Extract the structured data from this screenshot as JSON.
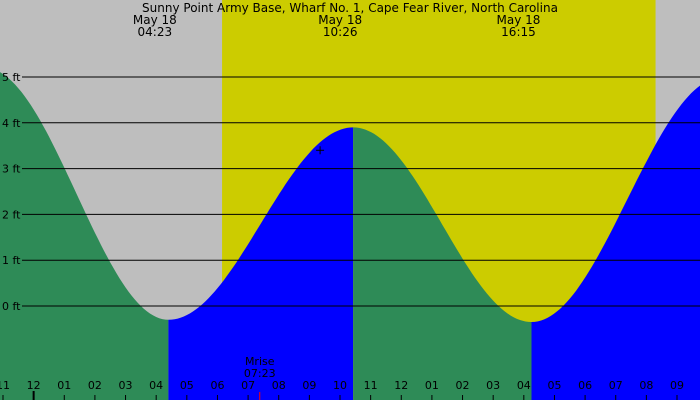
{
  "chart_data": {
    "type": "area",
    "title": "Sunny Point Army Base, Wharf No. 1, Cape Fear River, North Carolina",
    "ylabel": "",
    "xlabel": "",
    "y_unit": "ft",
    "ylim": [
      -2.7,
      5.3
    ],
    "xlim": [
      22.75,
      45.7
    ],
    "y_ticks": [
      {
        "value": 5,
        "label": "5 ft"
      },
      {
        "value": 4,
        "label": "4 ft"
      },
      {
        "value": 3,
        "label": "3 ft"
      },
      {
        "value": 2,
        "label": "2 ft"
      },
      {
        "value": 1,
        "label": "1 ft"
      },
      {
        "value": 0,
        "label": "0 ft"
      }
    ],
    "x_ticks": [
      {
        "hour": 23,
        "label": "11"
      },
      {
        "hour": 24,
        "label": "12"
      },
      {
        "hour": 25,
        "label": "01"
      },
      {
        "hour": 26,
        "label": "02"
      },
      {
        "hour": 27,
        "label": "03"
      },
      {
        "hour": 28,
        "label": "04"
      },
      {
        "hour": 29,
        "label": "05"
      },
      {
        "hour": 30,
        "label": "06"
      },
      {
        "hour": 31,
        "label": "07"
      },
      {
        "hour": 32,
        "label": "08"
      },
      {
        "hour": 33,
        "label": "09"
      },
      {
        "hour": 34,
        "label": "10"
      },
      {
        "hour": 35,
        "label": "11"
      },
      {
        "hour": 36,
        "label": "12"
      },
      {
        "hour": 37,
        "label": "01"
      },
      {
        "hour": 38,
        "label": "02"
      },
      {
        "hour": 39,
        "label": "03"
      },
      {
        "hour": 40,
        "label": "04"
      },
      {
        "hour": 41,
        "label": "05"
      },
      {
        "hour": 42,
        "label": "06"
      },
      {
        "hour": 43,
        "label": "07"
      },
      {
        "hour": 44,
        "label": "08"
      },
      {
        "hour": 45,
        "label": "09"
      }
    ],
    "tide_extremes": [
      {
        "hour": 22.4,
        "height": 5.2,
        "kind": "high"
      },
      {
        "hour": 28.4,
        "height": -0.3,
        "kind": "low"
      },
      {
        "hour": 34.43,
        "height": 3.9,
        "kind": "high"
      },
      {
        "hour": 40.25,
        "height": -0.35,
        "kind": "low"
      },
      {
        "hour": 46.5,
        "height": 5.0,
        "kind": "high"
      }
    ],
    "header_labels": [
      {
        "hour": 28.38,
        "date": "May 18",
        "time": "04:23"
      },
      {
        "hour": 34.43,
        "date": "May 18",
        "time": "10:26"
      },
      {
        "hour": 40.25,
        "date": "May 18",
        "time": "16:15"
      }
    ],
    "daylight": {
      "start_hour": 30.15,
      "end_hour": 44.3
    },
    "moonrise": {
      "hour": 31.38,
      "label": "Mrise",
      "time": "07:23"
    },
    "marker": {
      "hour": 33.35,
      "height": 3.4
    },
    "colors": {
      "background": "#bebebe",
      "daylight": "#cccc00",
      "falling": "#2e8b57",
      "rising": "#0000ff",
      "gridline": "#000000",
      "moonrise_tick": "#ff0000"
    }
  }
}
